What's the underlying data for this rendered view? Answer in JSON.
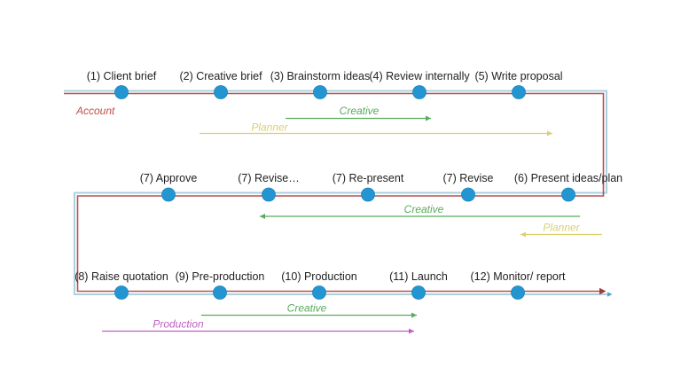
{
  "colors": {
    "background": "#ffffff",
    "path_blue": "#abd0de",
    "path_red": "#b65351",
    "path_red_arrow": "#a03c38",
    "path_blue_arrow": "#4ba3cc",
    "dot_blue": "#2396d2",
    "dot_edge": "#1b84bd",
    "creative_green": "#58ab5c",
    "planner_yellow": "#ddd06e",
    "production_magenta": "#c05fc0",
    "account_red": "#c14f48",
    "milestone_text": "#1f1f1f"
  },
  "diagram": {
    "rows": [
      {
        "direction": "left-to-right",
        "milestones": [
          "(1) Client brief",
          "(2) Creative brief",
          "(3) Brainstorm ideas",
          "(4) Review internally",
          "(5) Write proposal"
        ]
      },
      {
        "direction": "right-to-left",
        "milestones": [
          "(7) Approve",
          "(7) Revise…",
          "(7) Re-present",
          "(7) Revise",
          "(6) Present ideas/plan"
        ]
      },
      {
        "direction": "left-to-right",
        "milestones": [
          "(8) Raise quotation",
          "(9) Pre-production",
          "(10) Production",
          "(11) Launch",
          "(12) Monitor/ report"
        ]
      }
    ],
    "role_spans": [
      {
        "label": "Account",
        "row": 1,
        "color": "account_red",
        "kind": "label-only"
      },
      {
        "label": "Creative",
        "row": 1,
        "color": "creative_green",
        "direction": "right"
      },
      {
        "label": "Planner",
        "row": 1,
        "color": "planner_yellow",
        "direction": "right"
      },
      {
        "label": "Creative",
        "row": 2,
        "color": "creative_green",
        "direction": "left"
      },
      {
        "label": "Planner",
        "row": 2,
        "color": "planner_yellow",
        "direction": "left"
      },
      {
        "label": "Creative",
        "row": 3,
        "color": "creative_green",
        "direction": "right"
      },
      {
        "label": "Production",
        "row": 3,
        "color": "production_magenta",
        "direction": "right"
      }
    ]
  }
}
